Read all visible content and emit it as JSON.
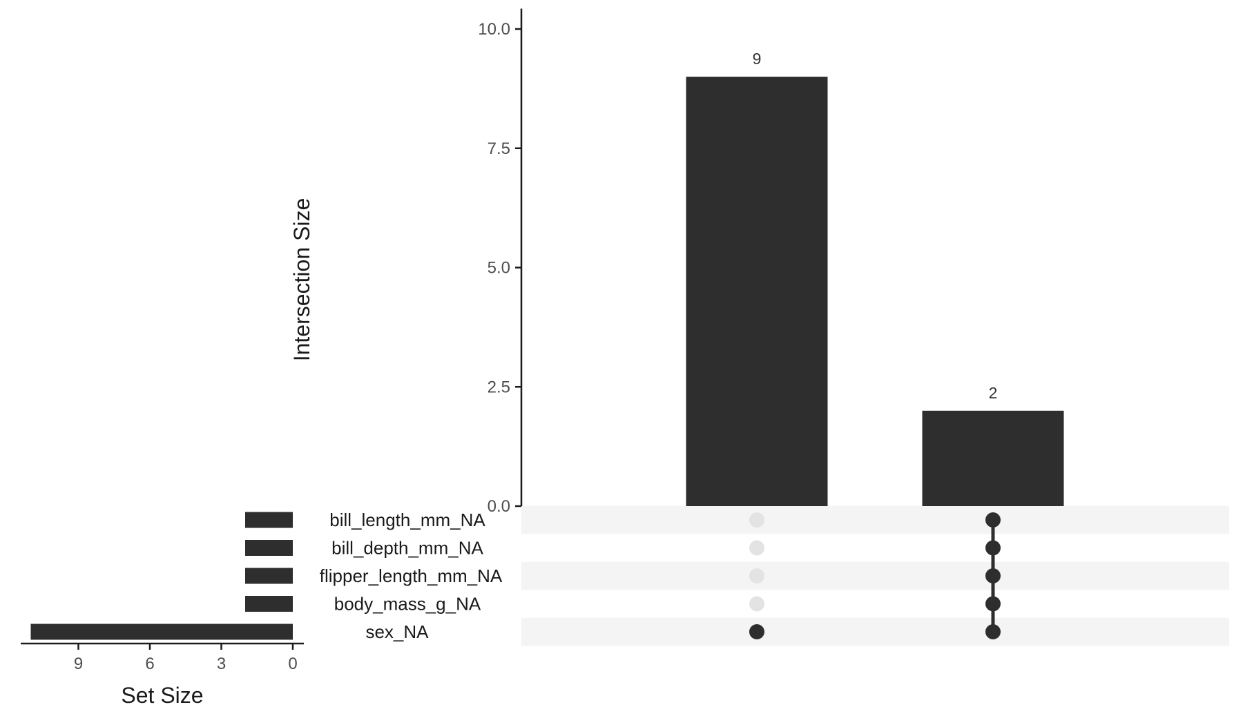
{
  "chart_data": {
    "type": "upset",
    "intersection_axis": {
      "label": "Intersection Size",
      "ylim": [
        0,
        10.5
      ],
      "ticks": [
        0,
        2.5,
        5,
        7.5,
        10
      ],
      "tick_labels": [
        "0.0",
        "2.5",
        "5.0",
        "7.5",
        "10.0"
      ]
    },
    "sets": [
      "bill_length_mm_NA",
      "bill_depth_mm_NA",
      "flipper_length_mm_NA",
      "body_mass_g_NA",
      "sex_NA"
    ],
    "set_sizes": [
      2,
      2,
      2,
      2,
      11
    ],
    "set_size_axis": {
      "label": "Set Size",
      "ticks": [
        9,
        6,
        3,
        0
      ],
      "tick_labels": [
        "9",
        "6",
        "3",
        "0"
      ],
      "xlim": [
        0,
        11.7
      ]
    },
    "intersections": [
      {
        "members": [
          "sex_NA"
        ],
        "size": 9,
        "label": "9"
      },
      {
        "members": [
          "bill_length_mm_NA",
          "bill_depth_mm_NA",
          "flipper_length_mm_NA",
          "body_mass_g_NA",
          "sex_NA"
        ],
        "size": 2,
        "label": "2"
      }
    ],
    "colors": {
      "bar": "#2e2e2e",
      "dot_active": "#2e2e2e",
      "dot_inactive": "#e3e3e3",
      "stripe": "#f4f4f4",
      "axis": "#1a1a1a"
    }
  }
}
